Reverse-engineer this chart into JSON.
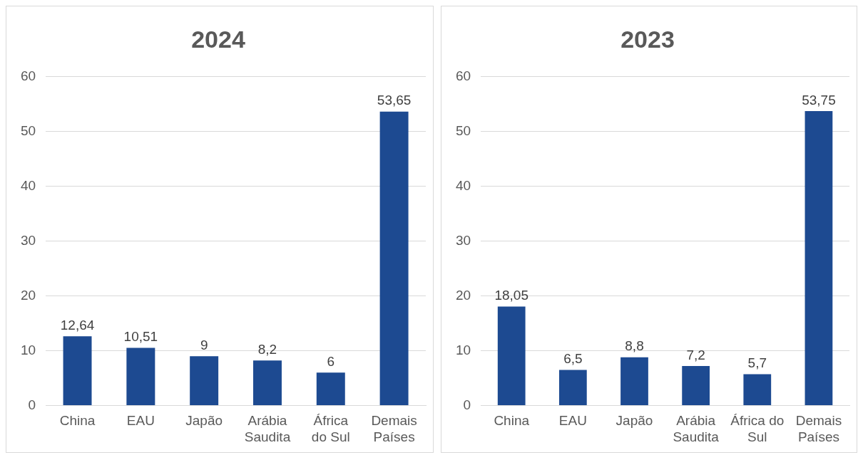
{
  "chart_data": [
    {
      "type": "bar",
      "title": "2024",
      "categories": [
        "China",
        "EAU",
        "Japão",
        "Arábia Saudita",
        "África do Sul",
        "Demais Países"
      ],
      "values": [
        12.64,
        10.51,
        9,
        8.2,
        6,
        53.65
      ],
      "value_labels": [
        "12,64",
        "10,51",
        "9",
        "8,2",
        "6",
        "53,65"
      ],
      "color": "#1d4a91",
      "ylim": [
        0,
        60
      ],
      "yticks": [
        0,
        10,
        20,
        30,
        40,
        50,
        60
      ],
      "grid": "y",
      "legend": false
    },
    {
      "type": "bar",
      "title": "2023",
      "categories": [
        "China",
        "EAU",
        "Japão",
        "Arábia Saudita",
        "África do Sul",
        "Demais Países"
      ],
      "values": [
        18.05,
        6.5,
        8.8,
        7.2,
        5.7,
        53.75
      ],
      "value_labels": [
        "18,05",
        "6,5",
        "8,8",
        "7,2",
        "5,7",
        "53,75"
      ],
      "color": "#1d4a91",
      "ylim": [
        0,
        60
      ],
      "yticks": [
        0,
        10,
        20,
        30,
        40,
        50,
        60
      ],
      "grid": "y",
      "legend": false
    }
  ]
}
